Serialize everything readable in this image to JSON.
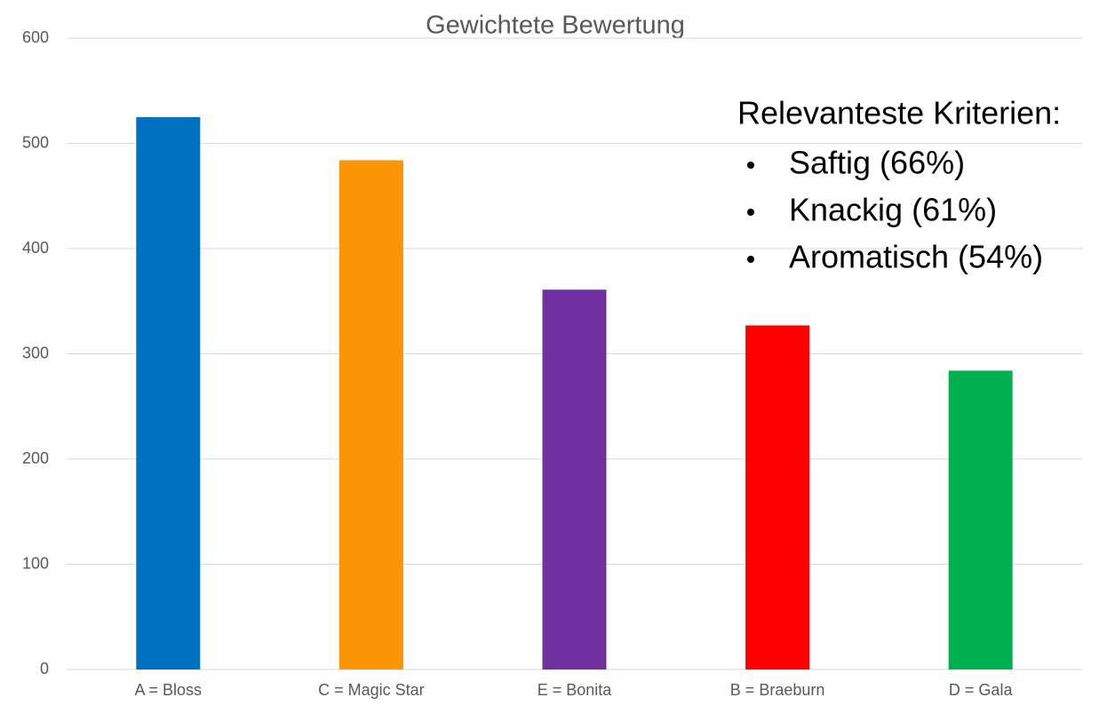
{
  "chart_data": {
    "type": "bar",
    "title": "Gewichtete Bewertung",
    "categories": [
      "A = Bloss",
      "C = Magic Star",
      "E = Bonita",
      "B = Braeburn",
      "D = Gala"
    ],
    "values": [
      525,
      484,
      361,
      327,
      284
    ],
    "colors": [
      "#0070c0",
      "#fb9506",
      "#7030a0",
      "#ff0000",
      "#00b050"
    ],
    "ylim": [
      0,
      600
    ],
    "yticks": [
      0,
      100,
      200,
      300,
      400,
      500,
      600
    ],
    "grid": true,
    "annotation": {
      "title": "Relevanteste Kriterien:",
      "items": [
        "Saftig (66%)",
        "Knackig (61%)",
        "Aromatisch (54%)"
      ]
    }
  }
}
